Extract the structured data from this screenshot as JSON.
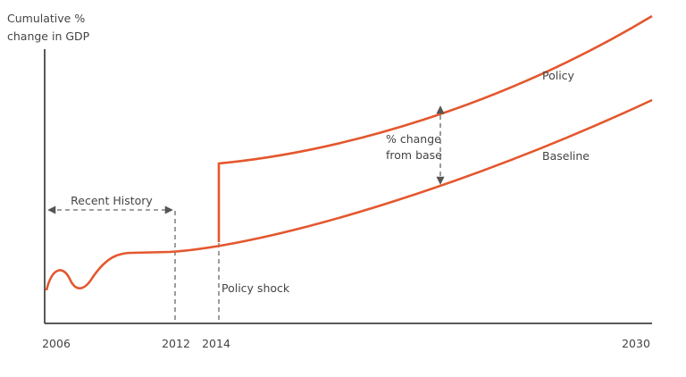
{
  "axis_label": {
    "line1": "Cumulative %",
    "line2": "change in GDP"
  },
  "x_labels": [
    "2006",
    "2012",
    "2014",
    "2030"
  ],
  "series_labels": {
    "policy": "Policy",
    "baseline": "Baseline"
  },
  "annotations": {
    "recent_history": "Recent History",
    "policy_shock": "Policy shock",
    "change_line1": "% change",
    "change_line2": "from base"
  }
}
